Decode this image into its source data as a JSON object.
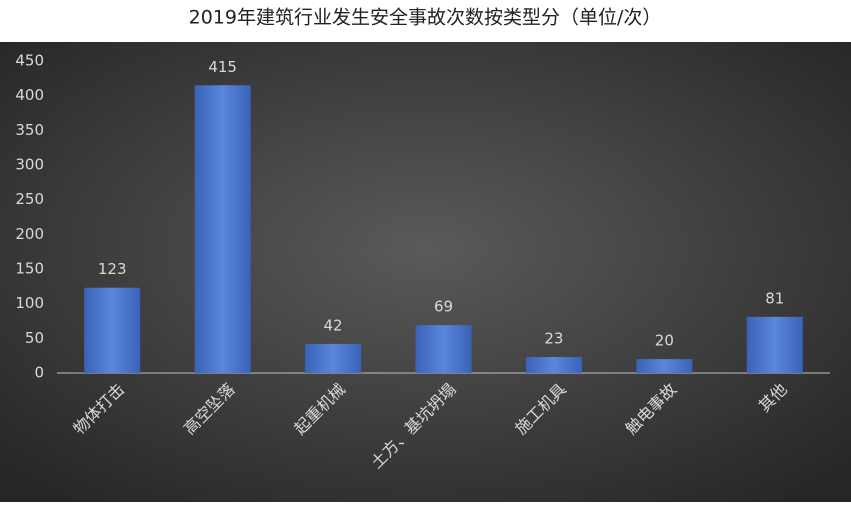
{
  "chart_data": {
    "type": "bar",
    "title": "2019年建筑行业发生安全事故次数按类型分（单位/次）",
    "categories": [
      "物体打击",
      "高空坠落",
      "起重机械",
      "土方、基坑坍塌",
      "施工机具",
      "触电事故",
      "其他"
    ],
    "values": [
      123,
      415,
      42,
      69,
      23,
      20,
      81
    ],
    "color": "#4472c4",
    "ylim": [
      0,
      450
    ],
    "yticks": [
      0,
      50,
      100,
      150,
      200,
      250,
      300,
      350,
      400,
      450
    ],
    "grid": false
  }
}
